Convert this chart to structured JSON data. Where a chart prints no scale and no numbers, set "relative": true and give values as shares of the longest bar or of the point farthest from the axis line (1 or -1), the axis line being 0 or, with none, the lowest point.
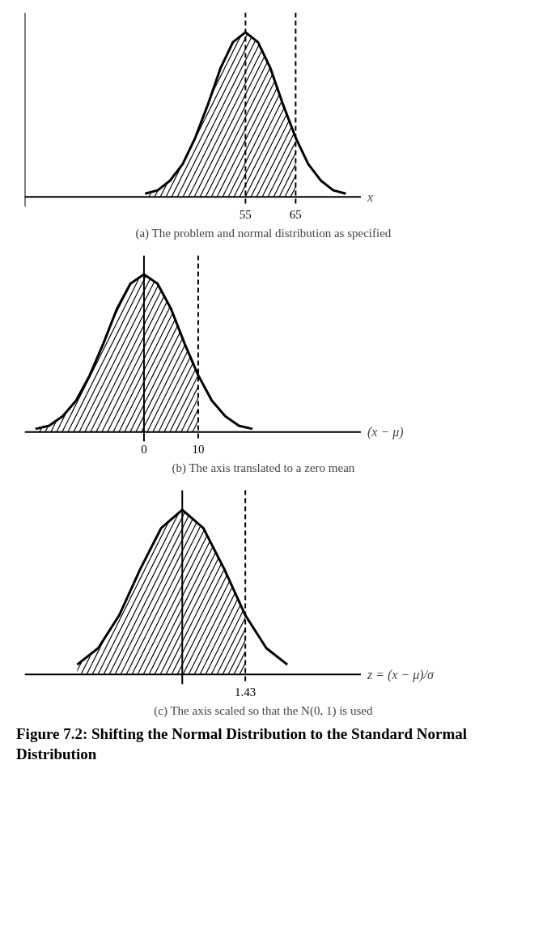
{
  "chart_data": [
    {
      "type": "line",
      "title": "(a) The problem and normal distribution as specified",
      "xlabel": "x",
      "relative": true,
      "xlim": [
        11,
        78
      ],
      "xticks": [
        55,
        65
      ],
      "grid": false,
      "series": [
        {
          "type": "area",
          "color": "#000000",
          "x": [
            35,
            37.5,
            40,
            42.5,
            45,
            47.5,
            50,
            52.5,
            55,
            57.5,
            60,
            62.5,
            65
          ],
          "values": [
            0.02,
            0.04,
            0.1,
            0.2,
            0.36,
            0.56,
            0.78,
            0.94,
            1,
            0.94,
            0.78,
            0.56,
            0.36
          ]
        },
        {
          "color": "#000000",
          "x": [
            35,
            37.5,
            40,
            42.5,
            45,
            47.5,
            50,
            52.5,
            55,
            57.5,
            60,
            62.5,
            65,
            67.5,
            70,
            72.5,
            75
          ],
          "values": [
            0.02,
            0.04,
            0.1,
            0.2,
            0.36,
            0.56,
            0.78,
            0.94,
            1,
            0.94,
            0.78,
            0.56,
            0.36,
            0.2,
            0.1,
            0.04,
            0.02
          ]
        }
      ],
      "ref_lines": [
        {
          "axis": "x",
          "value": 11,
          "line_style": "solid"
        },
        {
          "axis": "x",
          "value": 55,
          "line_style": "dashed"
        },
        {
          "axis": "x",
          "value": 65,
          "line_style": "dashed"
        }
      ]
    },
    {
      "type": "line",
      "title": "(b) The axis translated to a zero mean",
      "xlabel": "(x − μ)",
      "relative": true,
      "xlim": [
        -22,
        40
      ],
      "xticks": [
        0,
        10
      ],
      "grid": false,
      "series": [
        {
          "type": "area",
          "color": "#000000",
          "x": [
            -20,
            -17.5,
            -15,
            -12.5,
            -10,
            -7.5,
            -5,
            -2.5,
            0,
            2.5,
            5,
            7.5,
            10
          ],
          "values": [
            0.02,
            0.04,
            0.1,
            0.2,
            0.36,
            0.56,
            0.78,
            0.94,
            1,
            0.94,
            0.78,
            0.56,
            0.36
          ]
        },
        {
          "color": "#000000",
          "x": [
            -20,
            -17.5,
            -15,
            -12.5,
            -10,
            -7.5,
            -5,
            -2.5,
            0,
            2.5,
            5,
            7.5,
            10,
            12.5,
            15,
            17.5,
            20
          ],
          "values": [
            0.02,
            0.04,
            0.1,
            0.2,
            0.36,
            0.56,
            0.78,
            0.94,
            1,
            0.94,
            0.78,
            0.56,
            0.36,
            0.2,
            0.1,
            0.04,
            0.02
          ]
        }
      ],
      "ref_lines": [
        {
          "axis": "x",
          "value": 0,
          "line_style": "solid"
        },
        {
          "axis": "x",
          "value": 10,
          "line_style": "dashed"
        }
      ]
    },
    {
      "type": "line",
      "title": "(c) The axis scaled so that the N(0, 1) is used",
      "xlabel": "z = (x − μ)/σ",
      "relative": true,
      "grid": false,
      "categories": [
        null,
        null,
        null,
        null,
        null,
        null,
        null,
        null,
        null,
        null,
        null
      ],
      "series": [
        {
          "type": "area",
          "color": "#000000",
          "values": [
            0.06,
            0.16,
            0.36,
            0.64,
            0.89,
            1,
            0.89,
            0.64,
            0.36,
            null,
            null
          ]
        },
        {
          "color": "#000000",
          "values": [
            0.06,
            0.16,
            0.36,
            0.64,
            0.89,
            1,
            0.89,
            0.64,
            0.36,
            0.16,
            0.06
          ]
        }
      ],
      "ref_lines": [
        {
          "axis": "x",
          "line_style": "solid"
        },
        {
          "axis": "x",
          "line_style": "dashed",
          "label": "1.43"
        }
      ],
      "annotations": [
        "Figure 7.2: Shifting the Normal Distribution to the Standard Normal Distribution"
      ]
    }
  ]
}
